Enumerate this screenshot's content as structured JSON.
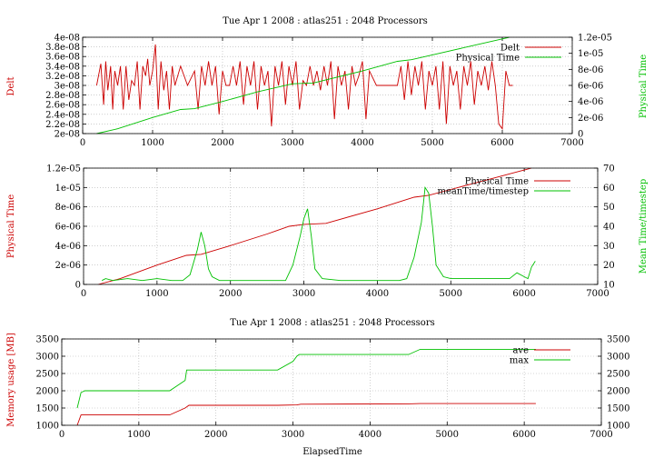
{
  "chart_data": [
    {
      "type": "line",
      "title": "Tue Apr 1 2008 : atlas251 : 2048 Processors",
      "xlabel": "",
      "ylabel_left": "Delt",
      "ylabel_right": "Physical Time",
      "xlim": [
        0,
        7000
      ],
      "xticks": [
        "0",
        "1000",
        "2000",
        "3000",
        "4000",
        "5000",
        "6000",
        "7000"
      ],
      "ylim_left": [
        2e-08,
        4e-08
      ],
      "yticks_left": [
        "2e-08",
        "2.2e-08",
        "2.4e-08",
        "2.6e-08",
        "2.8e-08",
        "3e-08",
        "3.2e-08",
        "3.4e-08",
        "3.6e-08",
        "3.8e-08",
        "4e-08"
      ],
      "ylim_right": [
        0,
        1.2e-05
      ],
      "yticks_right": [
        "0",
        "2e-06",
        "4e-06",
        "6e-06",
        "8e-06",
        "1e-05",
        "1.2e-05"
      ],
      "grid": true,
      "legend_position": "top-right",
      "series": [
        {
          "name": "Delt",
          "axis": "left",
          "color": "#cc0000",
          "x": [
            200,
            260,
            300,
            330,
            360,
            400,
            430,
            460,
            500,
            540,
            580,
            620,
            660,
            700,
            740,
            780,
            820,
            860,
            900,
            930,
            960,
            1000,
            1040,
            1080,
            1120,
            1160,
            1200,
            1240,
            1280,
            1320,
            1400,
            1500,
            1600,
            1650,
            1700,
            1750,
            1800,
            1850,
            1900,
            1950,
            2000,
            2050,
            2100,
            2150,
            2200,
            2250,
            2300,
            2350,
            2400,
            2450,
            2500,
            2550,
            2600,
            2650,
            2700,
            2750,
            2800,
            2850,
            2900,
            2950,
            3000,
            3050,
            3100,
            3150,
            3200,
            3250,
            3300,
            3350,
            3400,
            3450,
            3500,
            3550,
            3600,
            3650,
            3700,
            3750,
            3800,
            3850,
            3900,
            3950,
            4000,
            4050,
            4100,
            4200,
            4300,
            4400,
            4500,
            4550,
            4600,
            4650,
            4700,
            4750,
            4800,
            4850,
            4900,
            4950,
            5000,
            5050,
            5100,
            5150,
            5200,
            5250,
            5300,
            5350,
            5400,
            5450,
            5500,
            5550,
            5600,
            5650,
            5700,
            5750,
            5800,
            5850,
            5900,
            5950,
            6000,
            6050,
            6100,
            6150
          ],
          "values": [
            3e-08,
            3.45e-08,
            2.6e-08,
            3.5e-08,
            2.9e-08,
            3.4e-08,
            2.5e-08,
            3.3e-08,
            3e-08,
            3.4e-08,
            2.5e-08,
            3.4e-08,
            2.7e-08,
            3.1e-08,
            3e-08,
            3.5e-08,
            2.5e-08,
            3.4e-08,
            3.2e-08,
            3.55e-08,
            3e-08,
            3.3e-08,
            3.85e-08,
            2.5e-08,
            3.5e-08,
            2.9e-08,
            3.3e-08,
            2.5e-08,
            3.4e-08,
            3e-08,
            3.4e-08,
            3e-08,
            3.3e-08,
            2.5e-08,
            3.4e-08,
            3e-08,
            3.5e-08,
            3e-08,
            3.4e-08,
            2.4e-08,
            3.3e-08,
            3e-08,
            3e-08,
            3.4e-08,
            3e-08,
            3.5e-08,
            2.6e-08,
            3.4e-08,
            3e-08,
            3.5e-08,
            2.5e-08,
            3.4e-08,
            3e-08,
            3.3e-08,
            2.15e-08,
            3.4e-08,
            3e-08,
            3.5e-08,
            2.6e-08,
            3.4e-08,
            3e-08,
            3.5e-08,
            2.5e-08,
            3.1e-08,
            3e-08,
            3.4e-08,
            3e-08,
            3.3e-08,
            2.9e-08,
            3.4e-08,
            3e-08,
            3.5e-08,
            2.3e-08,
            3.4e-08,
            3e-08,
            3.3e-08,
            2.5e-08,
            3.4e-08,
            3e-08,
            3.2e-08,
            3.5e-08,
            2.3e-08,
            3.3e-08,
            3e-08,
            3e-08,
            3e-08,
            3e-08,
            3.4e-08,
            2.7e-08,
            3.5e-08,
            2.8e-08,
            3.4e-08,
            3e-08,
            3.5e-08,
            2.5e-08,
            3.3e-08,
            3e-08,
            3.4e-08,
            2.5e-08,
            3.5e-08,
            2.2e-08,
            3.4e-08,
            3e-08,
            3.3e-08,
            2.5e-08,
            3.4e-08,
            3e-08,
            3.5e-08,
            2.6e-08,
            3.3e-08,
            3e-08,
            3.4e-08,
            2.9e-08,
            3.5e-08,
            3e-08,
            2.2e-08,
            2.1e-08,
            3.3e-08,
            3e-08,
            3e-08
          ]
        },
        {
          "name": "Physical Time",
          "axis": "right",
          "color": "#00c000",
          "x": [
            200,
            500,
            1000,
            1400,
            1600,
            2000,
            2500,
            3000,
            3300,
            4000,
            4500,
            4700,
            5000,
            5500,
            6000,
            6100
          ],
          "values": [
            0,
            6e-07,
            2e-06,
            3e-06,
            3.1e-06,
            4e-06,
            5.2e-06,
            6.2e-06,
            6.3e-06,
            7.8e-06,
            9e-06,
            9.2e-06,
            9.8e-06,
            1.08e-05,
            1.18e-05,
            1.2e-05
          ]
        }
      ]
    },
    {
      "type": "line",
      "title": "",
      "xlabel": "",
      "ylabel_left": "Physical Time",
      "ylabel_right": "Mean Time/timestep",
      "xlim": [
        0,
        7000
      ],
      "xticks": [
        "0",
        "1000",
        "2000",
        "3000",
        "4000",
        "5000",
        "6000",
        "7000"
      ],
      "ylim_left": [
        0,
        1.2e-05
      ],
      "yticks_left": [
        "0",
        "2e-06",
        "4e-06",
        "6e-06",
        "8e-06",
        "1e-05",
        "1.2e-05"
      ],
      "ylim_right": [
        10,
        70
      ],
      "yticks_right": [
        "10",
        "20",
        "30",
        "40",
        "50",
        "60",
        "70"
      ],
      "grid": true,
      "legend_position": "top-right",
      "series": [
        {
          "name": "Physical Time",
          "axis": "left",
          "color": "#cc0000",
          "x": [
            200,
            500,
            1000,
            1400,
            1600,
            2000,
            2500,
            2800,
            3000,
            3300,
            4000,
            4500,
            4700,
            5000,
            5500,
            6000,
            6100
          ],
          "values": [
            0,
            6e-07,
            2e-06,
            3e-06,
            3.1e-06,
            4e-06,
            5.2e-06,
            6e-06,
            6.2e-06,
            6.3e-06,
            7.8e-06,
            9e-06,
            9.2e-06,
            9.8e-06,
            1.08e-05,
            1.18e-05,
            1.2e-05
          ]
        },
        {
          "name": "meanTime/timestep",
          "axis": "right",
          "color": "#00c000",
          "x": [
            250,
            300,
            400,
            600,
            800,
            1000,
            1200,
            1350,
            1450,
            1550,
            1600,
            1650,
            1700,
            1750,
            1850,
            2000,
            2200,
            2500,
            2750,
            2850,
            2950,
            3000,
            3050,
            3100,
            3150,
            3250,
            3500,
            3800,
            4100,
            4200,
            4300,
            4400,
            4500,
            4600,
            4650,
            4700,
            4750,
            4800,
            4900,
            5000,
            5200,
            5500,
            5800,
            5900,
            6000,
            6050,
            6100,
            6150
          ],
          "values": [
            12,
            13,
            12,
            13,
            12,
            13,
            12,
            12,
            15,
            28,
            37,
            30,
            18,
            14,
            12,
            12,
            12,
            12,
            12,
            20,
            35,
            44,
            49,
            35,
            18,
            13,
            12,
            12,
            12,
            12,
            12,
            13,
            24,
            42,
            60,
            57,
            40,
            20,
            14,
            13,
            13,
            13,
            13,
            16,
            14,
            13,
            19,
            22
          ]
        }
      ]
    },
    {
      "type": "line",
      "title": "Tue Apr 1 2008 : atlas251 : 2048 Processors",
      "xlabel": "ElapsedTime",
      "ylabel_left": "Memory usage [MB]",
      "ylabel_right": "",
      "xlim": [
        0,
        7000
      ],
      "xticks": [
        "0",
        "1000",
        "2000",
        "3000",
        "4000",
        "5000",
        "6000",
        "7000"
      ],
      "ylim_left": [
        1000,
        3500
      ],
      "yticks_left": [
        "1000",
        "1500",
        "2000",
        "2500",
        "3000",
        "3500"
      ],
      "ylim_right": [
        1000,
        3500
      ],
      "yticks_right": [
        "1000",
        "1500",
        "2000",
        "2500",
        "3000",
        "3500"
      ],
      "grid": true,
      "legend_position": "top-right",
      "series": [
        {
          "name": "ave",
          "axis": "left",
          "color": "#cc0000",
          "x": [
            200,
            250,
            1400,
            1600,
            1650,
            2800,
            3050,
            3100,
            4500,
            4650,
            6150
          ],
          "values": [
            1000,
            1300,
            1300,
            1500,
            1580,
            1580,
            1590,
            1610,
            1620,
            1630,
            1630
          ]
        },
        {
          "name": "max",
          "axis": "left",
          "color": "#00c000",
          "x": [
            200,
            250,
            300,
            1400,
            1600,
            1620,
            2800,
            3000,
            3050,
            3080,
            4500,
            4650,
            6150
          ],
          "values": [
            1500,
            1950,
            2000,
            2000,
            2300,
            2600,
            2600,
            2850,
            3000,
            3050,
            3050,
            3200,
            3200
          ]
        }
      ]
    }
  ]
}
